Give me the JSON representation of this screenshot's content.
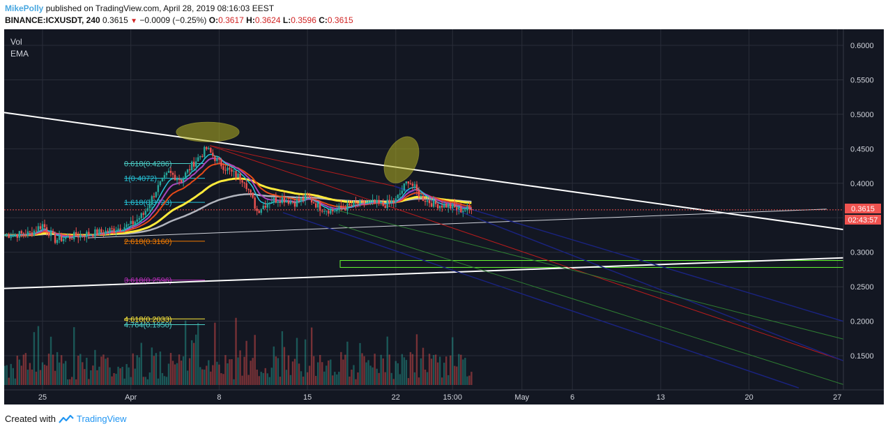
{
  "header": {
    "author": "MikePolly",
    "published_text": "published on TradingView.com, April 28, 2019 08:16:03 EEST",
    "symbol": "BINANCE:ICXUSDT, 240",
    "last": "0.3615",
    "change_arrow": "▼",
    "change": "−0.0009 (−0.25%)",
    "o_label": "O:",
    "o_value": "0.3617",
    "h_label": "H:",
    "h_value": "0.3624",
    "l_label": "L:",
    "l_value": "0.3596",
    "c_label": "C:",
    "c_value": "0.3615"
  },
  "indicators": {
    "vol": "Vol",
    "ema": "EMA"
  },
  "price_tag": {
    "value": "0.3615",
    "countdown": "02:43:57"
  },
  "fib_labels": [
    "0.618(0.4286)",
    "1(0.4072)",
    "1.618(0.3723)",
    "2.618(0.3160)",
    "3.618(0.2596)",
    "4.618(0.2033)",
    "4.764(0.1950)"
  ],
  "footer": {
    "created_with": "Created with",
    "brand": "TradingView"
  },
  "colors": {
    "background": "#131722",
    "grid": "#2a2e39",
    "up": "#26a69a",
    "down": "#ef5350",
    "ema_yellow": "#ffeb3b",
    "ema_grey": "#b2b5be",
    "trendline": "#ffffff",
    "price_line": "#ef5350"
  },
  "chart_data": {
    "type": "candlestick",
    "symbol": "BINANCE:ICXUSDT",
    "timeframe": "240",
    "ylim": [
      0.1,
      0.62
    ],
    "y_ticks": [
      "0.6000",
      "0.5500",
      "0.5000",
      "0.4500",
      "0.4000",
      "0.3500",
      "0.3000",
      "0.2500",
      "0.2000",
      "0.1500"
    ],
    "x_ticks": [
      "25",
      "Apr",
      "8",
      "15",
      "22",
      "15:00",
      "May",
      "6",
      "13",
      "20",
      "27"
    ],
    "close_series": [
      {
        "t": "Mar 22",
        "c": 0.325
      },
      {
        "t": "Mar 24",
        "c": 0.327
      },
      {
        "t": "Mar 25",
        "c": 0.34
      },
      {
        "t": "Mar 26",
        "c": 0.318
      },
      {
        "t": "Mar 28",
        "c": 0.325
      },
      {
        "t": "Mar 30",
        "c": 0.33
      },
      {
        "t": "Apr 1",
        "c": 0.34
      },
      {
        "t": "Apr 2",
        "c": 0.355
      },
      {
        "t": "Apr 3",
        "c": 0.39
      },
      {
        "t": "Apr 4",
        "c": 0.415
      },
      {
        "t": "Apr 5",
        "c": 0.405
      },
      {
        "t": "Apr 6",
        "c": 0.43
      },
      {
        "t": "Apr 7",
        "c": 0.45
      },
      {
        "t": "Apr 8",
        "c": 0.43
      },
      {
        "t": "Apr 9",
        "c": 0.415
      },
      {
        "t": "Apr 10",
        "c": 0.405
      },
      {
        "t": "Apr 11",
        "c": 0.36
      },
      {
        "t": "Apr 12",
        "c": 0.375
      },
      {
        "t": "Apr 13",
        "c": 0.378
      },
      {
        "t": "Apr 14",
        "c": 0.372
      },
      {
        "t": "Apr 15",
        "c": 0.38
      },
      {
        "t": "Apr 16",
        "c": 0.365
      },
      {
        "t": "Apr 17",
        "c": 0.36
      },
      {
        "t": "Apr 18",
        "c": 0.365
      },
      {
        "t": "Apr 19",
        "c": 0.37
      },
      {
        "t": "Apr 20",
        "c": 0.372
      },
      {
        "t": "Apr 21",
        "c": 0.368
      },
      {
        "t": "Apr 22",
        "c": 0.375
      },
      {
        "t": "Apr 23",
        "c": 0.405
      },
      {
        "t": "Apr 24",
        "c": 0.38
      },
      {
        "t": "Apr 25",
        "c": 0.37
      },
      {
        "t": "Apr 26",
        "c": 0.368
      },
      {
        "t": "Apr 27",
        "c": 0.362
      },
      {
        "t": "Apr 28",
        "c": 0.3615
      }
    ],
    "last_price": 0.3615,
    "fib_levels": [
      {
        "label": "0.618(0.4286)",
        "value": 0.4286,
        "color": "#4dd0c8"
      },
      {
        "label": "1(0.4072)",
        "value": 0.4072,
        "color": "#26c6da"
      },
      {
        "label": "1.618(0.3723)",
        "value": 0.3723,
        "color": "#26c6da"
      },
      {
        "label": "2.618(0.3160)",
        "value": 0.316,
        "color": "#f57c00"
      },
      {
        "label": "3.618(0.2596)",
        "value": 0.2596,
        "color": "#c030c0"
      },
      {
        "label": "4.618(0.2033)",
        "value": 0.2033,
        "color": "#ffeb3b"
      },
      {
        "label": "4.764(0.1950)",
        "value": 0.195,
        "color": "#4dd0c8"
      }
    ],
    "zone": {
      "from": 0.278,
      "to": 0.288,
      "color": "#66ff33"
    }
  }
}
